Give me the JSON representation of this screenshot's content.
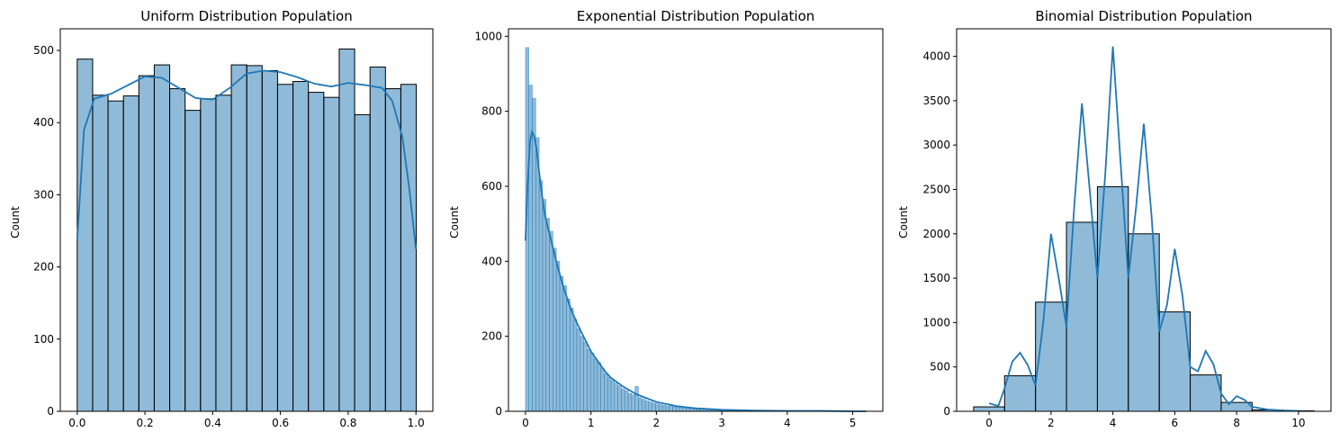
{
  "chart_data": [
    {
      "type": "bar",
      "title": "Uniform Distribution Population",
      "xlabel": "",
      "ylabel": "Count",
      "xlim": [
        -0.05,
        1.05
      ],
      "ylim": [
        0,
        530
      ],
      "xticks": [
        0.0,
        0.2,
        0.4,
        0.6,
        0.8,
        1.0
      ],
      "xtick_labels": [
        "0.0",
        "0.2",
        "0.4",
        "0.6",
        "0.8",
        "1.0"
      ],
      "yticks": [
        0,
        100,
        200,
        300,
        400,
        500
      ],
      "ytick_labels": [
        "0",
        "100",
        "200",
        "300",
        "400",
        "500"
      ],
      "bin_start": 0.0,
      "bin_width": 0.0455,
      "values": [
        488,
        438,
        430,
        437,
        465,
        480,
        447,
        417,
        433,
        438,
        480,
        479,
        472,
        453,
        457,
        442,
        435,
        502,
        411,
        477,
        447,
        453
      ],
      "kde_x": [
        0.0,
        0.02,
        0.05,
        0.1,
        0.15,
        0.2,
        0.25,
        0.3,
        0.35,
        0.4,
        0.45,
        0.5,
        0.55,
        0.6,
        0.65,
        0.7,
        0.75,
        0.8,
        0.85,
        0.9,
        0.93,
        0.96,
        0.98,
        1.0
      ],
      "kde_y": [
        238,
        390,
        433,
        440,
        452,
        464,
        462,
        448,
        434,
        432,
        448,
        468,
        472,
        470,
        463,
        454,
        450,
        455,
        452,
        448,
        430,
        380,
        310,
        225
      ],
      "grid": false
    },
    {
      "type": "bar",
      "title": "Exponential Distribution Population",
      "xlabel": "",
      "ylabel": "Count",
      "xlim": [
        -0.26,
        5.46
      ],
      "ylim": [
        0,
        1020
      ],
      "xticks": [
        0,
        1,
        2,
        3,
        4,
        5
      ],
      "xtick_labels": [
        "0",
        "1",
        "2",
        "3",
        "4",
        "5"
      ],
      "yticks": [
        0,
        200,
        400,
        600,
        800,
        1000
      ],
      "ytick_labels": [
        "0",
        "200",
        "400",
        "600",
        "800",
        "1000"
      ],
      "bin_start": 0.0,
      "bin_width": 0.0523,
      "values": [
        970,
        870,
        835,
        730,
        615,
        565,
        515,
        480,
        435,
        400,
        360,
        335,
        300,
        275,
        245,
        220,
        200,
        185,
        165,
        155,
        140,
        130,
        115,
        100,
        90,
        82,
        75,
        68,
        60,
        55,
        48,
        44,
        66,
        36,
        32,
        28,
        25,
        22,
        20,
        18,
        16,
        14,
        18,
        12,
        11,
        10,
        9,
        8,
        7,
        6,
        5,
        5,
        4,
        4,
        3,
        3,
        3,
        2,
        2,
        2,
        2,
        2,
        1,
        1,
        1,
        1,
        1,
        1,
        1,
        1,
        1,
        1,
        1,
        0,
        1,
        0,
        0,
        1,
        0,
        0,
        0,
        0,
        1,
        0,
        0,
        0,
        0,
        0,
        0,
        0,
        0,
        0,
        0,
        0,
        0,
        0,
        0,
        0,
        0,
        1
      ],
      "kde_x": [
        0.0,
        0.03,
        0.07,
        0.1,
        0.13,
        0.17,
        0.2,
        0.25,
        0.3,
        0.4,
        0.5,
        0.6,
        0.7,
        0.8,
        0.9,
        1.0,
        1.1,
        1.2,
        1.3,
        1.5,
        1.7,
        2.0,
        2.3,
        2.6,
        3.0,
        3.5,
        4.0,
        4.5,
        5.0,
        5.2
      ],
      "kde_y": [
        455,
        600,
        720,
        745,
        735,
        700,
        650,
        580,
        520,
        450,
        380,
        320,
        270,
        230,
        195,
        160,
        135,
        110,
        90,
        65,
        45,
        25,
        14,
        8,
        4,
        2,
        1,
        1,
        0,
        0
      ],
      "grid": false
    },
    {
      "type": "bar",
      "title": "Binomial Distribution Population",
      "xlabel": "",
      "ylabel": "Count",
      "xlim": [
        -1.05,
        11.05
      ],
      "ylim": [
        0,
        4310
      ],
      "xticks": [
        0,
        2,
        4,
        6,
        8,
        10
      ],
      "xtick_labels": [
        "0",
        "2",
        "4",
        "6",
        "8",
        "10"
      ],
      "yticks": [
        0,
        500,
        1000,
        1500,
        2000,
        2500,
        3000,
        3500,
        4000
      ],
      "ytick_labels": [
        "0",
        "500",
        "1000",
        "1500",
        "2000",
        "2500",
        "3000",
        "3500",
        "4000"
      ],
      "bin_start": -0.5,
      "bin_width": 1.0,
      "values": [
        50,
        400,
        1230,
        2130,
        2530,
        2000,
        1120,
        410,
        100,
        15,
        5
      ],
      "kde_x": [
        0.0,
        0.3,
        0.5,
        0.75,
        1.0,
        1.25,
        1.5,
        1.75,
        2.0,
        2.25,
        2.5,
        2.75,
        3.0,
        3.25,
        3.5,
        3.75,
        4.0,
        4.25,
        4.5,
        4.75,
        5.0,
        5.25,
        5.5,
        5.75,
        6.0,
        6.25,
        6.5,
        6.75,
        7.0,
        7.25,
        7.5,
        7.75,
        8.0,
        8.25,
        8.5,
        9.0,
        9.5,
        10.0
      ],
      "kde_y": [
        90,
        60,
        260,
        560,
        660,
        520,
        290,
        1000,
        2000,
        1500,
        950,
        2300,
        3470,
        2500,
        1500,
        2650,
        4110,
        2800,
        1500,
        2300,
        3240,
        2200,
        900,
        1200,
        1830,
        1300,
        500,
        450,
        680,
        530,
        200,
        80,
        170,
        130,
        50,
        20,
        10,
        5
      ],
      "grid": false
    }
  ]
}
